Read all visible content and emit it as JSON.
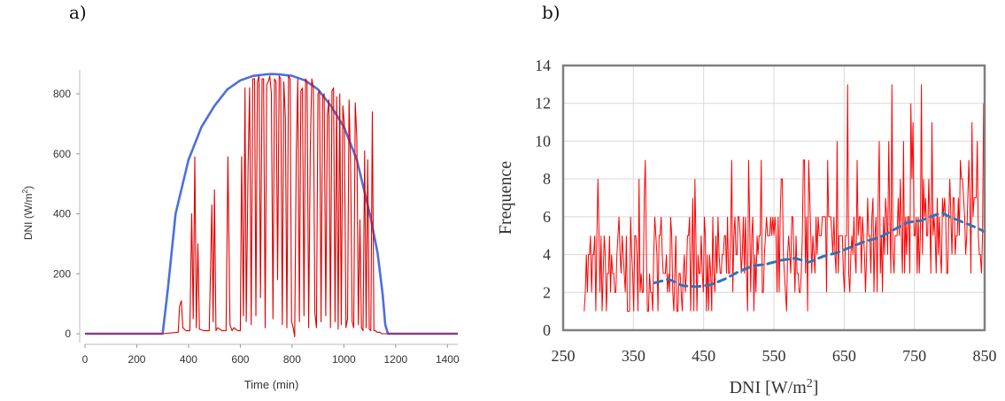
{
  "labels": {
    "panel_a": "a)",
    "panel_b": "b)"
  },
  "chart_data": [
    {
      "type": "line",
      "xlabel": "Time (min)",
      "ylabel": "DNI (W/m²)",
      "xlim": [
        0,
        1440
      ],
      "ylim": [
        -30,
        880
      ],
      "xticks": [
        "0",
        "200",
        "400",
        "600",
        "800",
        "1000",
        "1200",
        "1400"
      ],
      "yticks": [
        "0",
        "200",
        "400",
        "600",
        "800"
      ],
      "grid": false,
      "colors": {
        "clear_sky": "#4b6fe0",
        "measured": "#e00000"
      },
      "series": [
        {
          "name": "",
          "style": "clear-sky envelope",
          "x": [
            0,
            300,
            320,
            350,
            400,
            450,
            500,
            550,
            600,
            650,
            700,
            720,
            750,
            800,
            850,
            900,
            950,
            1000,
            1050,
            1100,
            1130,
            1150,
            1160,
            1170,
            1440
          ],
          "y": [
            0,
            0,
            150,
            400,
            580,
            690,
            760,
            815,
            845,
            860,
            865,
            866,
            865,
            860,
            845,
            815,
            760,
            690,
            580,
            400,
            270,
            130,
            30,
            0,
            0
          ]
        },
        {
          "name": "",
          "style": "measured",
          "x": [
            0,
            300,
            360,
            365,
            372,
            378,
            390,
            405,
            412,
            418,
            424,
            430,
            436,
            442,
            460,
            480,
            490,
            495,
            500,
            506,
            512,
            530,
            545,
            552,
            560,
            568,
            575,
            590,
            600,
            605,
            612,
            618,
            623,
            630,
            636,
            642,
            648,
            655,
            660,
            666,
            672,
            678,
            684,
            690,
            696,
            702,
            708,
            714,
            720,
            726,
            732,
            738,
            744,
            750,
            756,
            762,
            768,
            774,
            780,
            786,
            792,
            798,
            804,
            810,
            816,
            822,
            828,
            834,
            840,
            846,
            852,
            858,
            864,
            870,
            876,
            882,
            888,
            894,
            900,
            906,
            912,
            918,
            924,
            930,
            936,
            942,
            948,
            954,
            960,
            966,
            972,
            978,
            984,
            990,
            996,
            1002,
            1008,
            1014,
            1020,
            1026,
            1032,
            1038,
            1044,
            1050,
            1056,
            1062,
            1068,
            1074,
            1080,
            1086,
            1092,
            1098,
            1104,
            1110,
            1116,
            1122,
            1128,
            1134,
            1140,
            1146,
            1160,
            1440
          ],
          "y": [
            0,
            0,
            5,
            90,
            110,
            20,
            10,
            10,
            400,
            50,
            590,
            20,
            300,
            15,
            10,
            10,
            430,
            40,
            480,
            10,
            20,
            10,
            10,
            590,
            30,
            10,
            20,
            10,
            10,
            590,
            60,
            820,
            40,
            560,
            820,
            30,
            850,
            850,
            60,
            840,
            860,
            120,
            850,
            850,
            20,
            830,
            840,
            860,
            800,
            50,
            850,
            840,
            180,
            860,
            850,
            30,
            840,
            720,
            20,
            860,
            850,
            40,
            20,
            -10,
            600,
            850,
            40,
            810,
            820,
            60,
            850,
            840,
            20,
            610,
            850,
            820,
            70,
            20,
            800,
            810,
            40,
            790,
            800,
            60,
            730,
            780,
            20,
            810,
            820,
            40,
            790,
            15,
            800,
            30,
            760,
            700,
            20,
            50,
            780,
            560,
            40,
            20,
            770,
            650,
            30,
            380,
            20,
            10,
            610,
            20,
            580,
            15,
            10,
            740,
            10,
            10,
            5,
            5,
            5,
            0,
            0,
            0
          ]
        }
      ]
    },
    {
      "type": "line",
      "xlabel": "DNI [W/m²]",
      "ylabel": "Frequence",
      "xlim": [
        250,
        850
      ],
      "ylim": [
        0,
        14
      ],
      "xticks": [
        "250",
        "350",
        "450",
        "550",
        "650",
        "750",
        "850"
      ],
      "yticks": [
        "0",
        "2",
        "4",
        "6",
        "8",
        "10",
        "12",
        "14"
      ],
      "grid": true,
      "colors": {
        "frequency": "#ff0000",
        "trend": "#2e75b6"
      },
      "series": [
        {
          "name": "",
          "style": "frequency (red)",
          "seed": 7,
          "start": 280,
          "step": 1.5,
          "trend_poly": {
            "x": [
              280,
              350,
              400,
              450,
              500,
              550,
              600,
              650,
              700,
              750,
              800,
              850
            ],
            "y": [
              3.0,
              3.0,
              3.1,
              3.2,
              3.6,
              3.8,
              3.8,
              4.4,
              4.8,
              5.2,
              5.6,
              5.2
            ]
          },
          "spikes": {
            "x": [
              300,
              330,
              365,
              390,
              430,
              490,
              520,
              560,
              600,
              640,
              655,
              668,
              700,
              718,
              735,
              745,
              760,
              775,
              800,
              815,
              840,
              848
            ],
            "y": [
              8,
              6,
              7,
              6,
              6,
              9,
              6,
              8,
              9,
              10,
              13,
              9,
              10,
              13,
              10,
              12,
              13,
              11,
              8,
              9,
              10,
              12
            ]
          },
          "end_value": 0
        },
        {
          "name": "",
          "style": "trend (blue dashed)",
          "x": [
            380,
            400,
            420,
            440,
            460,
            480,
            500,
            520,
            540,
            560,
            580,
            600,
            620,
            640,
            660,
            680,
            700,
            720,
            740,
            760,
            780,
            790,
            800,
            820,
            840,
            850
          ],
          "y": [
            2.5,
            2.7,
            2.35,
            2.3,
            2.4,
            2.7,
            3.1,
            3.4,
            3.5,
            3.7,
            3.8,
            3.6,
            3.9,
            4.1,
            4.4,
            4.7,
            4.9,
            5.3,
            5.7,
            5.8,
            6.1,
            6.2,
            6.0,
            5.7,
            5.4,
            5.2
          ]
        }
      ]
    }
  ]
}
